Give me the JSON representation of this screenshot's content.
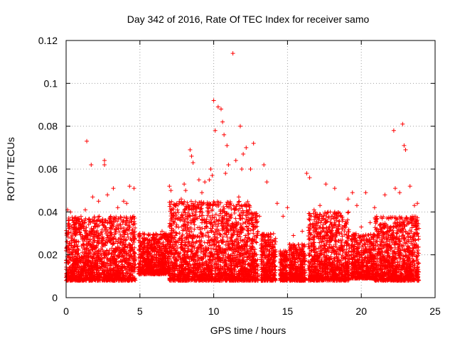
{
  "chart_data": {
    "type": "scatter",
    "title": "Day 342 of 2016, Rate Of TEC Index for receiver samo",
    "xlabel": "GPS time / hours",
    "ylabel": "ROTI / TECUs",
    "xlim": [
      0,
      25
    ],
    "ylim": [
      0,
      0.12
    ],
    "xticks": [
      0,
      5,
      10,
      15,
      20,
      25
    ],
    "yticks": [
      0,
      0.02,
      0.04,
      0.06,
      0.08,
      0.1,
      0.12
    ],
    "xtick_labels": [
      "0",
      "5",
      "10",
      "15",
      "20",
      "25"
    ],
    "ytick_labels": [
      "0",
      "0.02",
      "0.04",
      "0.06",
      "0.08",
      "0.1",
      "0.12"
    ],
    "grid": true,
    "marker": "+",
    "color": "#ff0000",
    "series": [
      {
        "name": "ROTI",
        "x": [
          1.4,
          1.7,
          2.6,
          2.6,
          3.2,
          4.3,
          4.6,
          7.0,
          7.1,
          8.0,
          8.1,
          8.4,
          8.5,
          8.6,
          9.0,
          9.4,
          9.7,
          9.8,
          10.0,
          10.1,
          10.3,
          10.5,
          10.6,
          10.7,
          10.9,
          11.0,
          11.3,
          11.5,
          11.8,
          11.9,
          12.0,
          12.2,
          12.5,
          12.7,
          13.4,
          13.6,
          14.3,
          15.0,
          16.3,
          16.5,
          17.6,
          18.2,
          19.4,
          19.7,
          20.3,
          20.9,
          21.6,
          22.2,
          22.3,
          22.8,
          22.9,
          23.0,
          23.6,
          23.8,
          0.1,
          0.3,
          0.5,
          0.7,
          1.0,
          1.3,
          1.8,
          2.2,
          2.8,
          3.5,
          3.9,
          4.1,
          5.2,
          5.6,
          6.1,
          6.5,
          7.4,
          7.8,
          9.2,
          9.9,
          10.8,
          11.7,
          12.4,
          13.1,
          14.0,
          14.7,
          15.4,
          16.0,
          16.8,
          17.2,
          17.9,
          18.6,
          19.1,
          20.0,
          20.6,
          21.2,
          21.9,
          22.6,
          23.3
        ],
        "y": [
          0.073,
          0.062,
          0.064,
          0.062,
          0.051,
          0.052,
          0.051,
          0.052,
          0.05,
          0.053,
          0.05,
          0.069,
          0.066,
          0.063,
          0.055,
          0.054,
          0.055,
          0.06,
          0.092,
          0.078,
          0.089,
          0.088,
          0.082,
          0.076,
          0.071,
          0.062,
          0.114,
          0.064,
          0.08,
          0.06,
          0.067,
          0.07,
          0.06,
          0.072,
          0.062,
          0.054,
          0.044,
          0.042,
          0.058,
          0.056,
          0.053,
          0.051,
          0.049,
          0.043,
          0.049,
          0.042,
          0.048,
          0.078,
          0.051,
          0.081,
          0.071,
          0.069,
          0.043,
          0.044,
          0.041,
          0.04,
          0.035,
          0.036,
          0.033,
          0.041,
          0.047,
          0.045,
          0.048,
          0.042,
          0.045,
          0.044,
          0.03,
          0.029,
          0.027,
          0.031,
          0.043,
          0.046,
          0.049,
          0.057,
          0.058,
          0.047,
          0.041,
          0.038,
          0.026,
          0.038,
          0.029,
          0.031,
          0.041,
          0.043,
          0.04,
          0.038,
          0.046,
          0.033,
          0.035,
          0.03,
          0.031,
          0.049,
          0.052
        ]
      }
    ],
    "dense_regions": [
      {
        "x": [
          0.0,
          4.7
        ],
        "y": [
          0.004,
          0.038
        ]
      },
      {
        "x": [
          4.9,
          7.0
        ],
        "y": [
          0.007,
          0.03
        ]
      },
      {
        "x": [
          7.0,
          12.7
        ],
        "y": [
          0.004,
          0.045
        ]
      },
      {
        "x": [
          12.6,
          13.0
        ],
        "y": [
          0.004,
          0.04
        ]
      },
      {
        "x": [
          13.2,
          14.2
        ],
        "y": [
          0.004,
          0.03
        ]
      },
      {
        "x": [
          14.5,
          15.0
        ],
        "y": [
          0.004,
          0.022
        ]
      },
      {
        "x": [
          15.1,
          16.2
        ],
        "y": [
          0.004,
          0.025
        ]
      },
      {
        "x": [
          16.4,
          19.2
        ],
        "y": [
          0.004,
          0.04
        ]
      },
      {
        "x": [
          19.3,
          20.9
        ],
        "y": [
          0.005,
          0.03
        ]
      },
      {
        "x": [
          20.9,
          23.9
        ],
        "y": [
          0.004,
          0.038
        ]
      }
    ]
  }
}
